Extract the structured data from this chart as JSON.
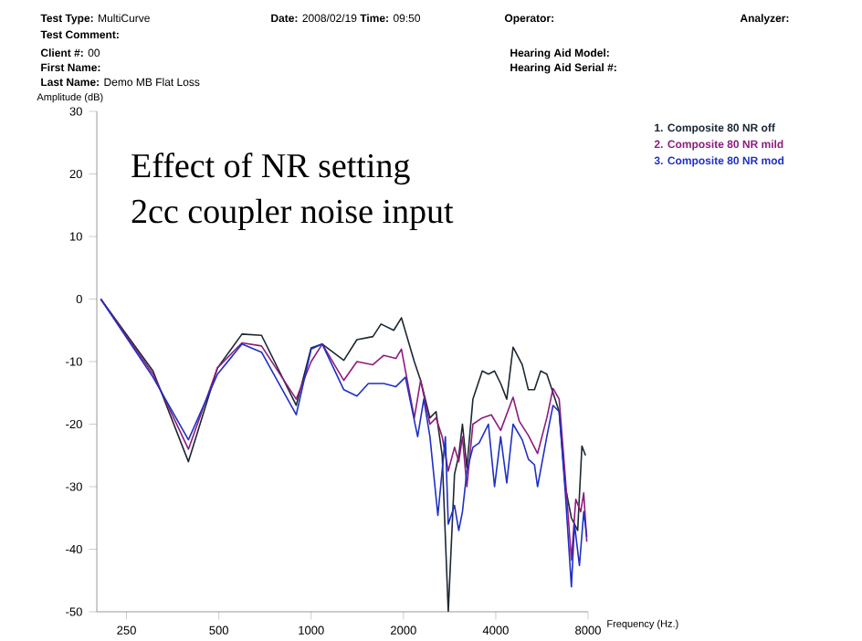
{
  "chart_data": {
    "type": "line",
    "title": "Effect of NR setting",
    "subtitle": "2cc coupler noise input",
    "xlabel": "Frequency (Hz.)",
    "ylabel": "Amplitude (dB)",
    "annotations": [
      "**Test Type:** MultiCurve",
      "**Test Comment:**",
      "**Client #:** 00",
      "**First Name:**",
      "**Last Name:** Demo MB Flat Loss",
      "**Date:** 2008/02/19 **Time:** 09:50",
      "**Operator:**",
      "**Hearing Aid Model:**",
      "**Hearing Aid Serial #:**",
      "**Analyzer:**"
    ],
    "log": "x",
    "xlim": [
      200,
      8000
    ],
    "ylim": [
      -50,
      30
    ],
    "xticks": [
      250,
      500,
      1000,
      2000,
      4000,
      8000
    ],
    "yticks": [
      -50,
      -40,
      -30,
      -20,
      -10,
      0,
      10,
      20,
      30
    ],
    "legend": "top right",
    "series": [
      {
        "name": "1. Composite 80 NR off",
        "color": "#1c2833",
        "x": [
          206,
          305,
          398,
          495,
          595,
          689,
          894,
          1000,
          1087,
          1278,
          1410,
          1590,
          1690,
          1860,
          1970,
          2170,
          2275,
          2440,
          2555,
          2675,
          2800,
          2935,
          3030,
          3115,
          3220,
          3370,
          3615,
          3785,
          3965,
          4150,
          4345,
          4555,
          4880,
          5110,
          5350,
          5605,
          5870,
          6150,
          6440,
          6745,
          7060,
          7400,
          7640,
          7850
        ],
        "values": [
          0,
          -11.5,
          -26,
          -11,
          -5.6,
          -5.8,
          -17,
          -7.8,
          -7.2,
          -9.8,
          -6.5,
          -6,
          -4,
          -5,
          -3,
          -10,
          -13,
          -19,
          -18,
          -25,
          -50,
          -28,
          -25,
          -20,
          -27,
          -16,
          -11.5,
          -12,
          -11.5,
          -13.5,
          -16,
          -7.7,
          -10.5,
          -14.5,
          -14.5,
          -11.5,
          -12,
          -15,
          -18,
          -30,
          -35,
          -37,
          -23.5,
          -25
        ]
      },
      {
        "name": "2. Composite 80 NR mild",
        "color": "#8e1b7e",
        "x": [
          206,
          305,
          398,
          495,
          595,
          689,
          894,
          1000,
          1087,
          1278,
          1410,
          1590,
          1725,
          1890,
          1970,
          2170,
          2275,
          2440,
          2555,
          2675,
          2800,
          2935,
          3030,
          3115,
          3220,
          3370,
          3615,
          3870,
          4150,
          4555,
          4770,
          5110,
          5475,
          5870,
          6150,
          6440,
          6745,
          7060,
          7295,
          7570,
          7745,
          7925
        ],
        "values": [
          0,
          -12,
          -24,
          -11,
          -7,
          -7.5,
          -16,
          -10,
          -7.2,
          -13,
          -10,
          -10.5,
          -9,
          -9.5,
          -8,
          -19,
          -13,
          -20,
          -19,
          -22,
          -27.5,
          -23.7,
          -26,
          -22,
          -30,
          -20,
          -19,
          -18.5,
          -21,
          -15.7,
          -19.5,
          -21.8,
          -24.7,
          -19,
          -14.3,
          -16,
          -28.5,
          -41.7,
          -32,
          -34,
          -31,
          -38.8
        ]
      },
      {
        "name": "3. Composite 80 NR mod",
        "color": "#1f2fc4",
        "x": [
          206,
          305,
          398,
          495,
          595,
          689,
          894,
          1000,
          1087,
          1278,
          1410,
          1537,
          1725,
          1890,
          2030,
          2225,
          2330,
          2440,
          2590,
          2740,
          2800,
          2935,
          3030,
          3115,
          3220,
          3370,
          3530,
          3615,
          3785,
          3965,
          4150,
          4345,
          4555,
          4880,
          5110,
          5350,
          5475,
          5870,
          6150,
          6440,
          6745,
          7060,
          7225,
          7500,
          7745,
          7925
        ],
        "values": [
          0,
          -12.5,
          -22.5,
          -12,
          -7.2,
          -8.5,
          -18.5,
          -8,
          -7.2,
          -14.5,
          -15.5,
          -13.5,
          -13.5,
          -14,
          -12.5,
          -22,
          -16,
          -22,
          -34.6,
          -22,
          -36,
          -33,
          -37,
          -34,
          -27.5,
          -23.7,
          -23,
          -22,
          -20,
          -30,
          -22,
          -29.4,
          -20,
          -22.5,
          -25.6,
          -26.5,
          -30,
          -22,
          -17,
          -18,
          -31,
          -46,
          -36,
          -42.6,
          -34,
          -38
        ]
      }
    ]
  }
}
